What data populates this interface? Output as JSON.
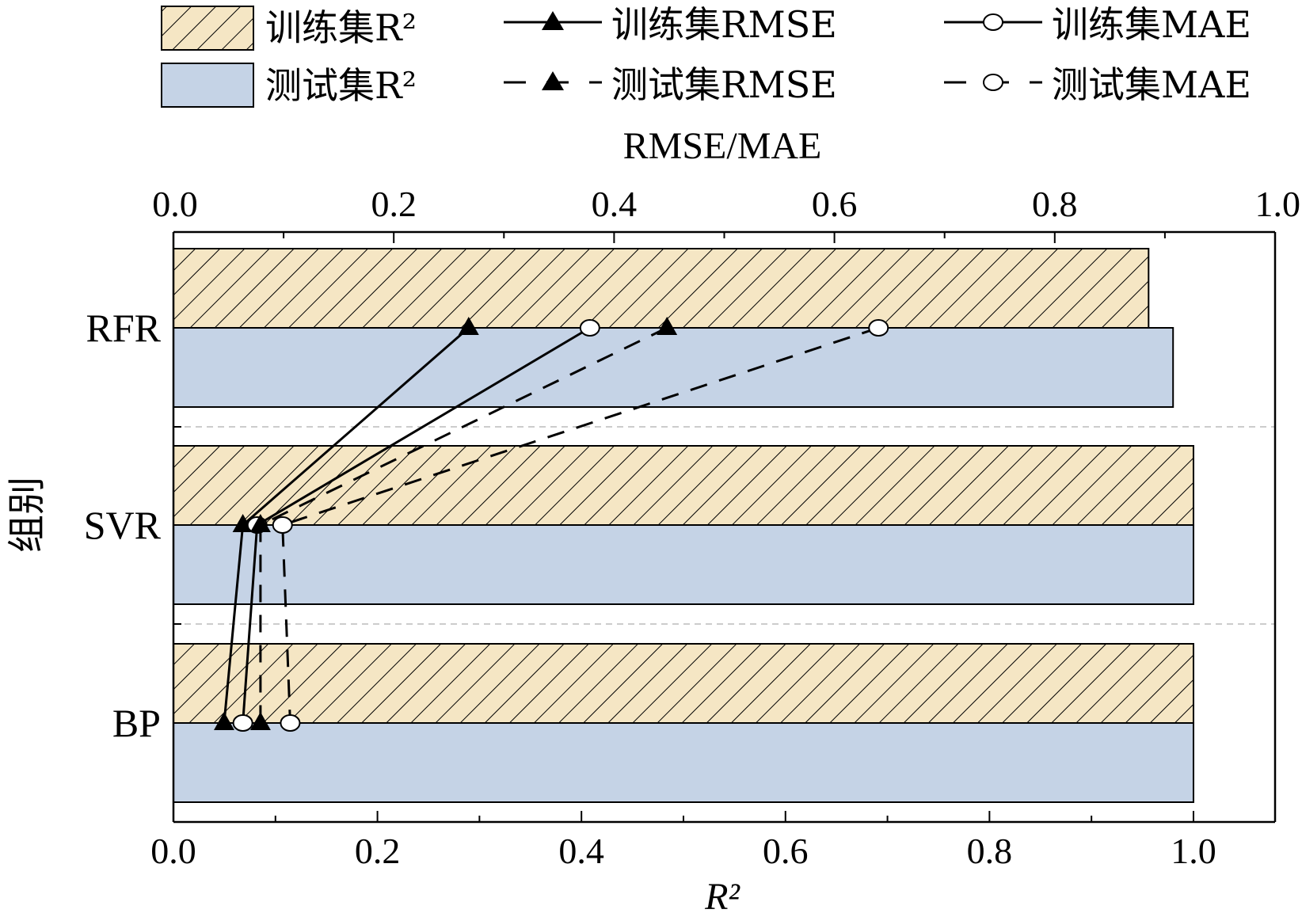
{
  "chart_data": {
    "type": "bar",
    "orientation": "horizontal",
    "categories": [
      "RFR",
      "SVR",
      "BP"
    ],
    "y_axis_label": "组别",
    "x_axis_bottom": {
      "label": "R²",
      "range": [
        0,
        1.08
      ],
      "ticks": [
        "0.0",
        "0.2",
        "0.4",
        "0.6",
        "0.8",
        "1.0"
      ]
    },
    "x_axis_top": {
      "label": "RMSE/MAE",
      "range": [
        0,
        1.0
      ],
      "ticks": [
        "0.0",
        "0.2",
        "0.4",
        "0.6",
        "0.8",
        "1.0"
      ]
    },
    "bar_series": [
      {
        "name": "训练集R²",
        "values": [
          0.956,
          1.0,
          1.0
        ],
        "color": "#f5e6c4",
        "pattern": "hatch"
      },
      {
        "name": "测试集R²",
        "values": [
          0.98,
          1.0,
          1.0
        ],
        "color": "#c5d3e6",
        "pattern": "solid"
      }
    ],
    "line_series": [
      {
        "name": "训练集RMSE",
        "values": [
          0.268,
          0.063,
          0.046
        ],
        "marker": "triangle",
        "dash": "solid"
      },
      {
        "name": "训练集MAE",
        "values": [
          0.378,
          0.076,
          0.063
        ],
        "marker": "circle",
        "dash": "solid"
      },
      {
        "name": "测试集RMSE",
        "values": [
          0.448,
          0.079,
          0.079
        ],
        "marker": "triangle",
        "dash": "dashed"
      },
      {
        "name": "测试集MAE",
        "values": [
          0.64,
          0.099,
          0.106
        ],
        "marker": "circle",
        "dash": "dashed"
      }
    ],
    "legend_placement": "top"
  }
}
